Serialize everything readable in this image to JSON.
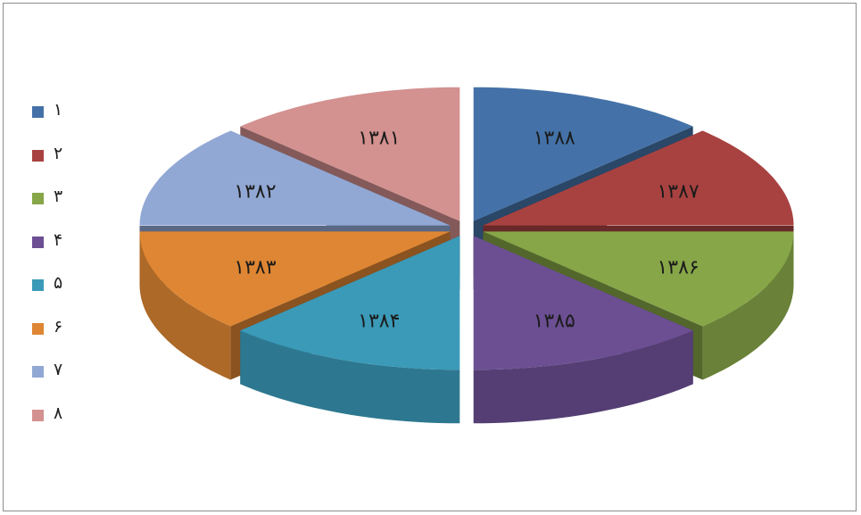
{
  "chart_data": {
    "type": "pie",
    "style": "3d-exploded",
    "legend_position": "left",
    "legend": [
      "۱",
      "۲",
      "۳",
      "۴",
      "۵",
      "۶",
      "۷",
      "۸"
    ],
    "slices": [
      {
        "legend": "۱",
        "label": "۱۳۸۸",
        "value": 12.5,
        "color": "#4472a8"
      },
      {
        "legend": "۲",
        "label": "۱۳۸۷",
        "value": 12.5,
        "color": "#a84240"
      },
      {
        "legend": "۳",
        "label": "۱۳۸۶",
        "value": 12.5,
        "color": "#86a648"
      },
      {
        "legend": "۴",
        "label": "۱۳۸۵",
        "value": 12.5,
        "color": "#6c4f93"
      },
      {
        "legend": "۵",
        "label": "۱۳۸۴",
        "value": 12.5,
        "color": "#3a9ab8"
      },
      {
        "legend": "۶",
        "label": "۱۳۸۳",
        "value": 12.5,
        "color": "#de8633"
      },
      {
        "legend": "۷",
        "label": "۱۳۸۲",
        "value": 12.5,
        "color": "#92a8d4"
      },
      {
        "legend": "۸",
        "label": "۱۳۸۱",
        "value": 12.5,
        "color": "#d39190"
      }
    ]
  }
}
